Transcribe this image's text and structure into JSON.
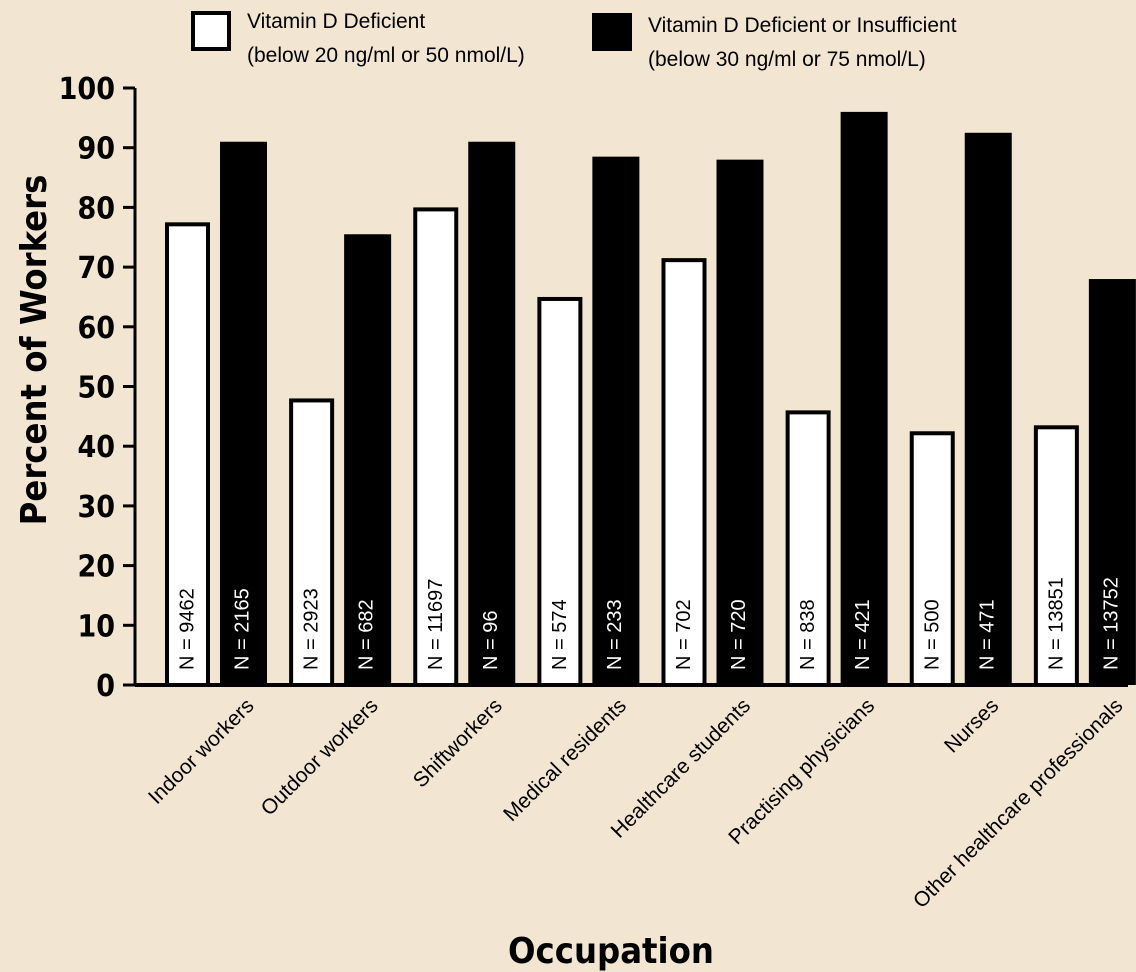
{
  "chart_data": {
    "type": "bar",
    "title": "",
    "xlabel": "Occupation",
    "ylabel": "Percent of Workers",
    "ylim": [
      0,
      100
    ],
    "yticks": [
      0,
      10,
      20,
      30,
      40,
      50,
      60,
      70,
      80,
      90,
      100
    ],
    "grid": false,
    "legend_position": "top",
    "categories": [
      "Indoor workers",
      "Outdoor workers",
      "Shiftworkers",
      "Medical residents",
      "Healthcare students",
      "Practising physicians",
      "Nurses",
      "Other healthcare professionals"
    ],
    "series": [
      {
        "name": "Vitamin D Deficient",
        "name_line2": "(below 20 ng/ml or 50 nmol/L)",
        "color": "#ffffff",
        "edge_color": "#000000",
        "values": [
          77.5,
          48,
          80,
          65,
          71.5,
          46,
          42.5,
          43.5
        ],
        "n_labels": [
          "N = 9462",
          "N = 2923",
          "N = 11697",
          "N = 574",
          "N = 702",
          "N = 838",
          "N = 500",
          "N = 13851"
        ]
      },
      {
        "name": "Vitamin D Deficient or Insufficient",
        "name_line2": "(below 30 ng/ml or 75 nmol/L)",
        "color": "#000000",
        "edge_color": "#000000",
        "values": [
          91,
          75.5,
          91,
          88.5,
          88,
          96,
          92.5,
          68
        ],
        "n_labels": [
          "N = 2165",
          "N = 682",
          "N = 96",
          "N = 233",
          "N = 720",
          "N = 421",
          "N = 471",
          "N = 13752"
        ]
      }
    ]
  }
}
